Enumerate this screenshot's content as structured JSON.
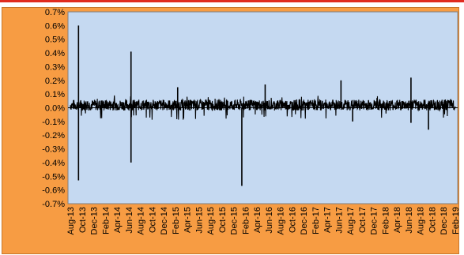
{
  "colors": {
    "frame_top": "#e02b1f",
    "chart_area_bg": "#f79c43",
    "plot_area_bg": "#c5d9f1",
    "series": "#000000",
    "gridline": "#000000"
  },
  "chart_data": {
    "type": "line",
    "title": "",
    "xlabel": "",
    "ylabel": "",
    "ylim": [
      -0.7,
      0.7
    ],
    "y_tick_step": 0.1,
    "y_tick_labels": [
      "0.7%",
      "0.6%",
      "0.5%",
      "0.4%",
      "0.3%",
      "0.2%",
      "0.1%",
      "0.0%",
      "-0.1%",
      "-0.2%",
      "-0.3%",
      "-0.4%",
      "-0.5%",
      "-0.6%",
      "-0.7%"
    ],
    "x_tick_labels": [
      "Aug-13",
      "Oct-13",
      "Dec-13",
      "Feb-14",
      "Apr-14",
      "Jun-14",
      "Aug-14",
      "Oct-14",
      "Dec-14",
      "Feb-15",
      "Apr-15",
      "Jun-15",
      "Aug-15",
      "Oct-15",
      "Dec-15",
      "Feb-16",
      "Apr-16",
      "Jun-16",
      "Aug-16",
      "Oct-16",
      "Dec-16",
      "Feb-17",
      "Apr-17",
      "Jun-17",
      "Aug-17",
      "Oct-17",
      "Dec-17",
      "Feb-18",
      "Apr-18",
      "Jun-18",
      "Aug-18",
      "Oct-18",
      "Dec-18",
      "Feb-19"
    ],
    "x_range": [
      "2013-08",
      "2019-02"
    ],
    "grid": "zero-line only",
    "legend": "none",
    "series": [
      {
        "values_units": "percent",
        "baseline_noise_band": [
          -0.02,
          0.06
        ],
        "spikes": [
          {
            "x": "2013-09",
            "y": 0.6
          },
          {
            "x": "2013-09",
            "y": -0.53
          },
          {
            "x": "2014-06",
            "y": 0.41
          },
          {
            "x": "2014-06",
            "y": -0.4
          },
          {
            "x": "2015-02",
            "y": 0.15
          },
          {
            "x": "2016-01",
            "y": -0.57
          },
          {
            "x": "2016-05",
            "y": 0.17
          },
          {
            "x": "2017-06",
            "y": 0.2
          },
          {
            "x": "2017-08",
            "y": -0.1
          },
          {
            "x": "2018-06",
            "y": 0.22
          },
          {
            "x": "2018-06",
            "y": -0.11
          },
          {
            "x": "2018-09",
            "y": -0.16
          }
        ]
      }
    ]
  }
}
